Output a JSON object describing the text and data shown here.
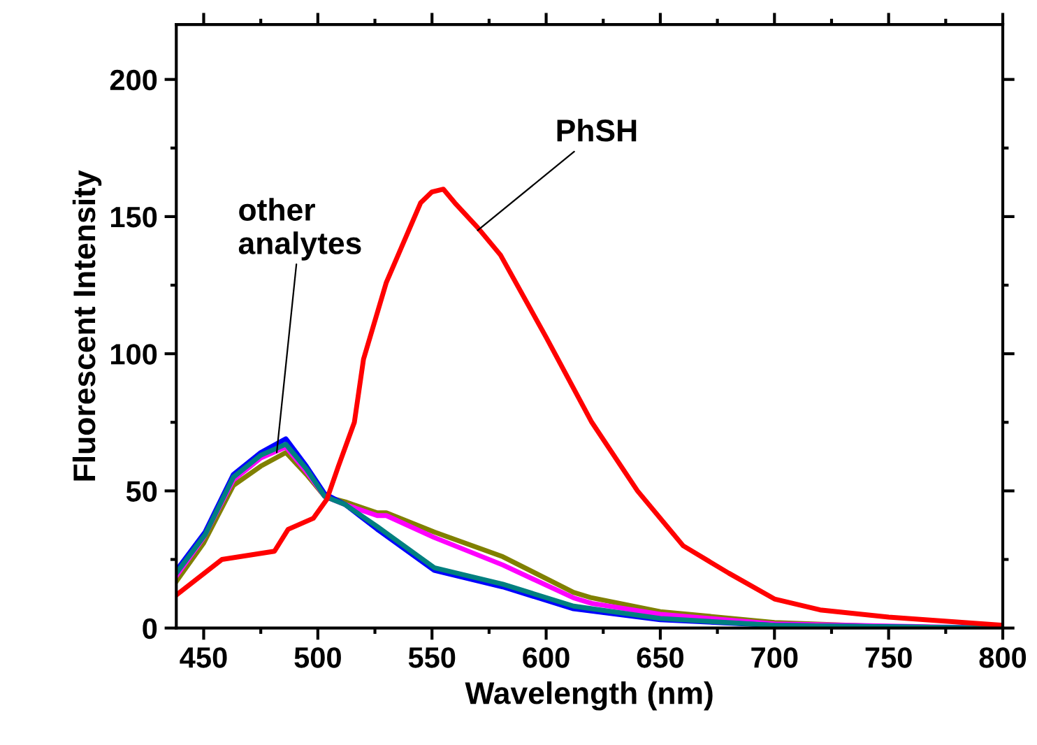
{
  "chart_data": {
    "type": "line",
    "xlabel": "Wavelength (nm)",
    "ylabel": "Fluorescent Intensity",
    "xlim": [
      438,
      800
    ],
    "ylim": [
      0,
      220
    ],
    "xticks": [
      450,
      500,
      550,
      600,
      650,
      700,
      750,
      800
    ],
    "yticks": [
      0,
      50,
      100,
      150,
      200
    ],
    "grid": false,
    "legend": false,
    "marker": "none",
    "line_style": "solid",
    "annotations": [
      {
        "text": "PhSH",
        "x": 570,
        "y": 145
      },
      {
        "text": "other\nanalytes",
        "x": 482,
        "y": 64
      }
    ],
    "series": [
      {
        "color": "#808000",
        "x": [
          438,
          450,
          463,
          475,
          486,
          495,
          503,
          512,
          526,
          530,
          551,
          581,
          612,
          620,
          650,
          700,
          750,
          800
        ],
        "values": [
          17,
          31,
          52,
          59,
          64,
          56,
          48,
          46,
          42,
          42,
          35,
          26,
          13,
          11,
          6,
          2,
          0.5,
          0
        ]
      },
      {
        "color": "#ff00ff",
        "x": [
          438,
          450,
          463,
          475,
          486,
          495,
          503,
          512,
          526,
          530,
          551,
          581,
          612,
          620,
          650,
          700,
          800
        ],
        "values": [
          19,
          33,
          54,
          62,
          66,
          57,
          48,
          45,
          41,
          41,
          33,
          23,
          11,
          9,
          5,
          1.5,
          0
        ]
      },
      {
        "color": "#0000ff",
        "x": [
          438,
          450.6,
          463,
          475,
          486,
          495,
          503,
          512,
          526,
          551,
          581,
          612,
          650,
          700,
          750,
          800
        ],
        "values": [
          21,
          35,
          56,
          64,
          69,
          59,
          49,
          45,
          36,
          21,
          15,
          7,
          3,
          1,
          0.5,
          0
        ]
      },
      {
        "color": "#008080",
        "x": [
          438,
          450.6,
          463,
          475,
          486,
          495,
          503,
          512,
          526,
          551,
          581,
          612,
          650,
          700,
          750,
          800
        ],
        "values": [
          20,
          34,
          55,
          63,
          67,
          58,
          48,
          45,
          37,
          22,
          16,
          8,
          3.5,
          1,
          0.5,
          0
        ]
      },
      {
        "color": "#ff0000",
        "x": [
          438,
          458,
          481,
          487,
          498,
          504,
          509,
          516,
          520,
          530,
          545,
          550,
          555,
          560,
          570,
          580,
          600,
          620,
          640,
          660,
          680,
          700,
          720,
          750,
          800
        ],
        "values": [
          12,
          25,
          28,
          36,
          40,
          47,
          59,
          75,
          98,
          126,
          155,
          159,
          160,
          155,
          146,
          136,
          106,
          75,
          50,
          30,
          20,
          10.6,
          6.6,
          4,
          1
        ]
      }
    ]
  }
}
